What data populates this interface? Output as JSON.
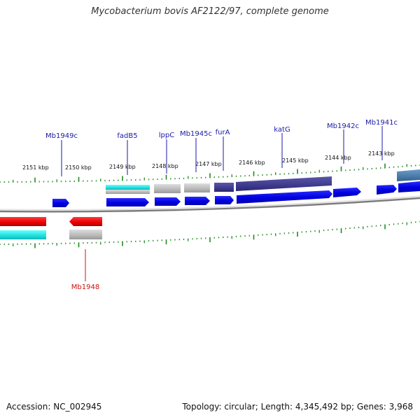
{
  "title": "Mycobacterium bovis AF2122/97, complete genome",
  "footer": {
    "accession": "Accession: NC_002945",
    "summary": "Topology: circular; Length: 4,345,492 bp; Genes: 3,968"
  },
  "ruler_labels": [
    "2151 kbp",
    "2150 kbp",
    "2149 kbp",
    "2148 kbp",
    "2147 kbp",
    "2146 kbp",
    "2145 kbp",
    "2144 kbp",
    "2143 kbp"
  ],
  "gene_labels_forward": [
    "Mb1949c",
    "fadB5",
    "lppC",
    "Mb1945c",
    "furA",
    "katG",
    "Mb1942c",
    "Mb1941c"
  ],
  "gene_labels_reverse": [
    "Mb1948"
  ],
  "colors": {
    "label_blue": "#1a1aa8",
    "label_red": "#cc1111",
    "cds_blue": "#0a0ae6",
    "cds_red": "#ee1111",
    "cyan": "#22dddd",
    "gray": "#b8b8b8",
    "navy": "#3e3a8c",
    "steel": "#4a7aa8",
    "tick_green": "#1f8a1f",
    "backbone": "#7a7a7a"
  }
}
